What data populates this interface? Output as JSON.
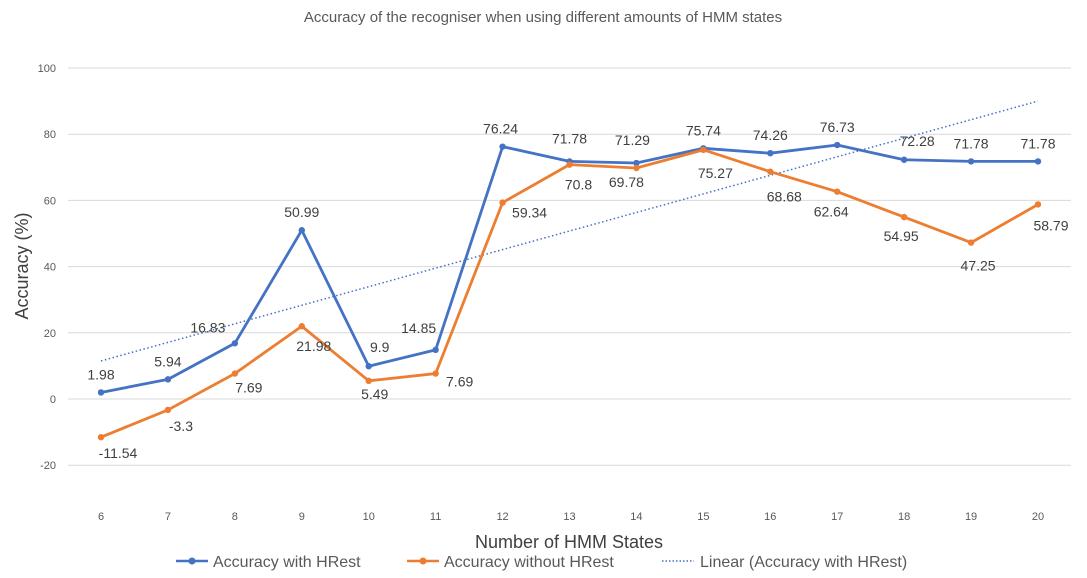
{
  "chart_data": {
    "type": "line",
    "title": "Accuracy of the recogniser when using different amounts of HMM states",
    "xlabel": "Number of HMM  States",
    "ylabel": "Accuracy (%)",
    "x": [
      6,
      7,
      8,
      9,
      10,
      11,
      12,
      13,
      14,
      15,
      16,
      17,
      18,
      19,
      20
    ],
    "yticks": [
      -20,
      0,
      20,
      40,
      60,
      80,
      100
    ],
    "ylim": [
      -20,
      100
    ],
    "grid": true,
    "legend_position": "bottom",
    "series": [
      {
        "name": "Accuracy with HRest",
        "color": "#4472c4",
        "values": [
          1.98,
          5.94,
          16.83,
          50.99,
          9.9,
          14.85,
          76.24,
          71.78,
          71.29,
          75.74,
          74.26,
          76.73,
          72.28,
          71.78,
          71.78
        ],
        "labels": [
          "1.98",
          "5.94",
          "16.83",
          "50.99",
          "9.9",
          "14.85",
          "76.24",
          "71.78",
          "71.29",
          "75.74",
          "74.26",
          "76.73",
          "72.28",
          "71.78",
          "71.78"
        ]
      },
      {
        "name": "Accuracy without HRest",
        "color": "#ed7d31",
        "values": [
          -11.54,
          -3.3,
          7.69,
          21.98,
          5.49,
          7.69,
          59.34,
          70.8,
          69.78,
          75.27,
          68.68,
          62.64,
          54.95,
          47.25,
          58.79
        ],
        "labels": [
          "-11.54",
          "-3.3",
          "7.69",
          "21.98",
          "5.49",
          "7.69",
          "59.34",
          "70.8",
          "69.78",
          "75.27",
          "68.68",
          "62.64",
          "54.95",
          "47.25",
          "58.79"
        ]
      }
    ],
    "trendline": {
      "name": "Linear (Accuracy with HRest)",
      "color": "#4472c4",
      "style": "dotted",
      "start": 11.5,
      "end": 90.0
    }
  }
}
